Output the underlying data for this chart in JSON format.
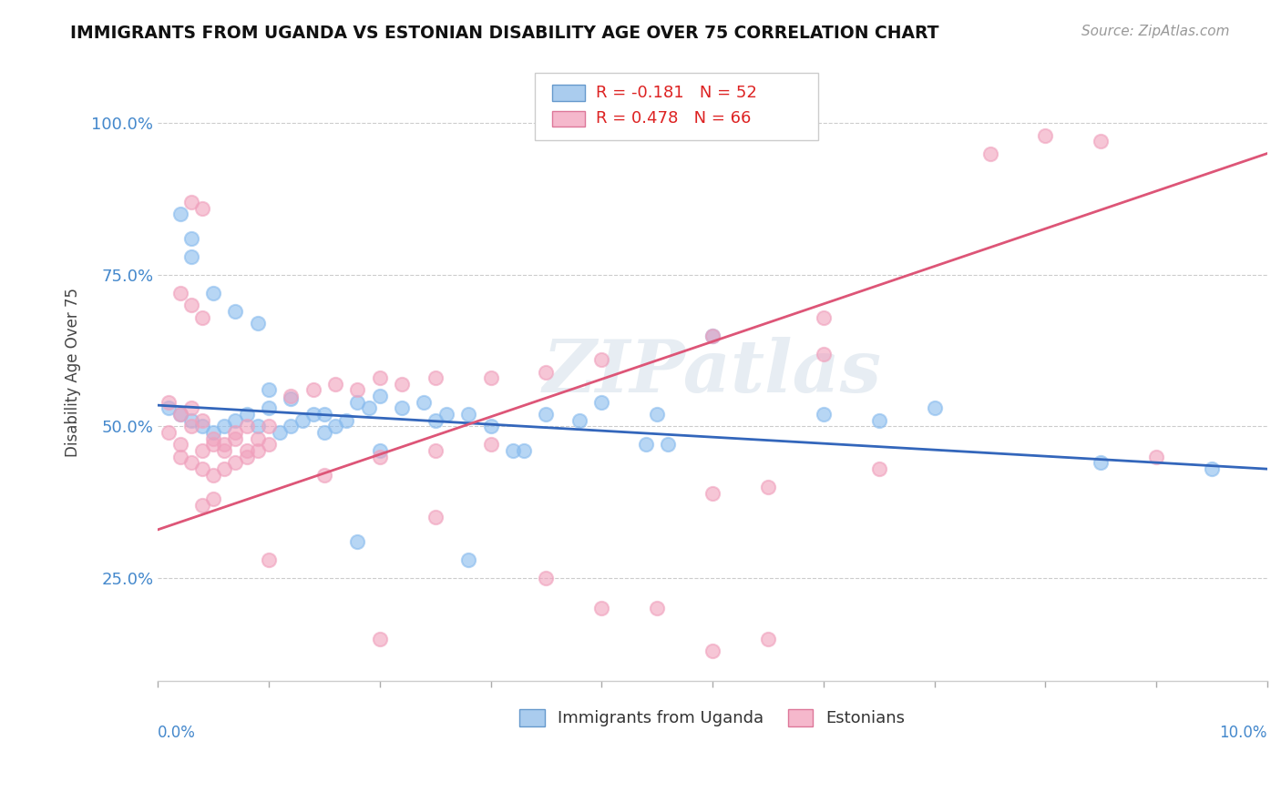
{
  "title": "IMMIGRANTS FROM UGANDA VS ESTONIAN DISABILITY AGE OVER 75 CORRELATION CHART",
  "source": "Source: ZipAtlas.com",
  "ylabel": "Disability Age Over 75",
  "xlim": [
    0.0,
    0.1
  ],
  "ylim": [
    0.08,
    1.1
  ],
  "yticks": [
    0.25,
    0.5,
    0.75,
    1.0
  ],
  "ytick_labels": [
    "25.0%",
    "50.0%",
    "75.0%",
    "100.0%"
  ],
  "watermark": "ZIPatlas",
  "blue_color": "#88bbee",
  "pink_color": "#f0a0bc",
  "blue_line_color": "#3366bb",
  "pink_line_color": "#dd5577",
  "blue_R": -0.181,
  "blue_N": 52,
  "pink_R": 0.478,
  "pink_N": 66,
  "blue_dots": [
    [
      0.001,
      0.53
    ],
    [
      0.002,
      0.52
    ],
    [
      0.003,
      0.51
    ],
    [
      0.004,
      0.5
    ],
    [
      0.005,
      0.49
    ],
    [
      0.006,
      0.5
    ],
    [
      0.007,
      0.51
    ],
    [
      0.008,
      0.52
    ],
    [
      0.009,
      0.5
    ],
    [
      0.01,
      0.53
    ],
    [
      0.011,
      0.49
    ],
    [
      0.012,
      0.5
    ],
    [
      0.013,
      0.51
    ],
    [
      0.014,
      0.52
    ],
    [
      0.015,
      0.49
    ],
    [
      0.016,
      0.5
    ],
    [
      0.003,
      0.78
    ],
    [
      0.005,
      0.72
    ],
    [
      0.007,
      0.69
    ],
    [
      0.009,
      0.67
    ],
    [
      0.002,
      0.85
    ],
    [
      0.003,
      0.81
    ],
    [
      0.018,
      0.54
    ],
    [
      0.02,
      0.55
    ],
    [
      0.022,
      0.53
    ],
    [
      0.024,
      0.54
    ],
    [
      0.026,
      0.52
    ],
    [
      0.01,
      0.56
    ],
    [
      0.012,
      0.545
    ],
    [
      0.015,
      0.52
    ],
    [
      0.017,
      0.51
    ],
    [
      0.019,
      0.53
    ],
    [
      0.025,
      0.51
    ],
    [
      0.028,
      0.52
    ],
    [
      0.03,
      0.5
    ],
    [
      0.035,
      0.52
    ],
    [
      0.038,
      0.51
    ],
    [
      0.04,
      0.54
    ],
    [
      0.045,
      0.52
    ],
    [
      0.05,
      0.65
    ],
    [
      0.06,
      0.52
    ],
    [
      0.065,
      0.51
    ],
    [
      0.07,
      0.53
    ],
    [
      0.085,
      0.44
    ],
    [
      0.095,
      0.43
    ],
    [
      0.018,
      0.31
    ],
    [
      0.028,
      0.28
    ],
    [
      0.032,
      0.46
    ],
    [
      0.033,
      0.46
    ],
    [
      0.044,
      0.47
    ],
    [
      0.046,
      0.47
    ],
    [
      0.02,
      0.46
    ]
  ],
  "pink_dots": [
    [
      0.001,
      0.49
    ],
    [
      0.002,
      0.47
    ],
    [
      0.003,
      0.5
    ],
    [
      0.004,
      0.46
    ],
    [
      0.005,
      0.48
    ],
    [
      0.006,
      0.47
    ],
    [
      0.007,
      0.49
    ],
    [
      0.008,
      0.46
    ],
    [
      0.009,
      0.48
    ],
    [
      0.01,
      0.5
    ],
    [
      0.001,
      0.54
    ],
    [
      0.002,
      0.52
    ],
    [
      0.003,
      0.53
    ],
    [
      0.004,
      0.51
    ],
    [
      0.005,
      0.47
    ],
    [
      0.006,
      0.46
    ],
    [
      0.007,
      0.48
    ],
    [
      0.008,
      0.5
    ],
    [
      0.009,
      0.46
    ],
    [
      0.01,
      0.47
    ],
    [
      0.002,
      0.45
    ],
    [
      0.003,
      0.44
    ],
    [
      0.004,
      0.43
    ],
    [
      0.005,
      0.42
    ],
    [
      0.006,
      0.43
    ],
    [
      0.007,
      0.44
    ],
    [
      0.008,
      0.45
    ],
    [
      0.003,
      0.87
    ],
    [
      0.004,
      0.86
    ],
    [
      0.002,
      0.72
    ],
    [
      0.003,
      0.7
    ],
    [
      0.004,
      0.68
    ],
    [
      0.012,
      0.55
    ],
    [
      0.014,
      0.56
    ],
    [
      0.016,
      0.57
    ],
    [
      0.018,
      0.56
    ],
    [
      0.02,
      0.58
    ],
    [
      0.022,
      0.57
    ],
    [
      0.025,
      0.58
    ],
    [
      0.03,
      0.58
    ],
    [
      0.035,
      0.59
    ],
    [
      0.04,
      0.61
    ],
    [
      0.02,
      0.45
    ],
    [
      0.025,
      0.46
    ],
    [
      0.03,
      0.47
    ],
    [
      0.05,
      0.39
    ],
    [
      0.055,
      0.4
    ],
    [
      0.06,
      0.68
    ],
    [
      0.065,
      0.43
    ],
    [
      0.075,
      0.95
    ],
    [
      0.08,
      0.98
    ],
    [
      0.085,
      0.97
    ],
    [
      0.09,
      0.45
    ],
    [
      0.01,
      0.28
    ],
    [
      0.02,
      0.15
    ],
    [
      0.035,
      0.25
    ],
    [
      0.04,
      0.2
    ],
    [
      0.055,
      0.15
    ],
    [
      0.004,
      0.37
    ],
    [
      0.005,
      0.38
    ],
    [
      0.015,
      0.42
    ],
    [
      0.025,
      0.35
    ],
    [
      0.045,
      0.2
    ],
    [
      0.05,
      0.13
    ],
    [
      0.05,
      0.65
    ],
    [
      0.06,
      0.62
    ]
  ]
}
